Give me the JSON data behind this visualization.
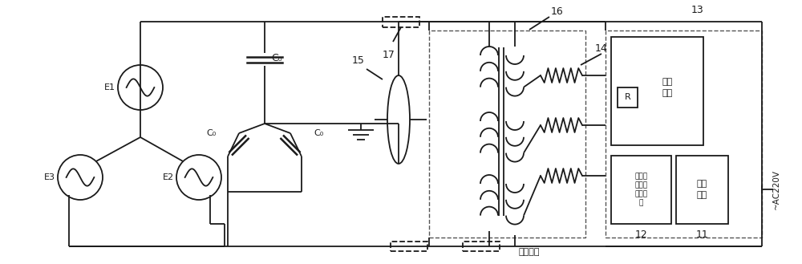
{
  "bg_color": "#ffffff",
  "lc": "#1a1a1a",
  "lw": 1.3,
  "figsize": [
    10.0,
    3.29
  ],
  "dpi": 100,
  "texts": {
    "E1": "E1",
    "E2": "E2",
    "E3": "E3",
    "C0": "C₀",
    "t15": "15",
    "t16": "16",
    "t17": "17",
    "t14": "14",
    "t13": "13",
    "t12": "12",
    "t11": "11",
    "R": "R",
    "baohu": "保护\n模块",
    "chongji": "冲击脉\n冲电流\n判断模\n块",
    "dianyuan": "电源\n模块",
    "ac220v": "~AC220V",
    "zeroseq": "零序电流"
  }
}
